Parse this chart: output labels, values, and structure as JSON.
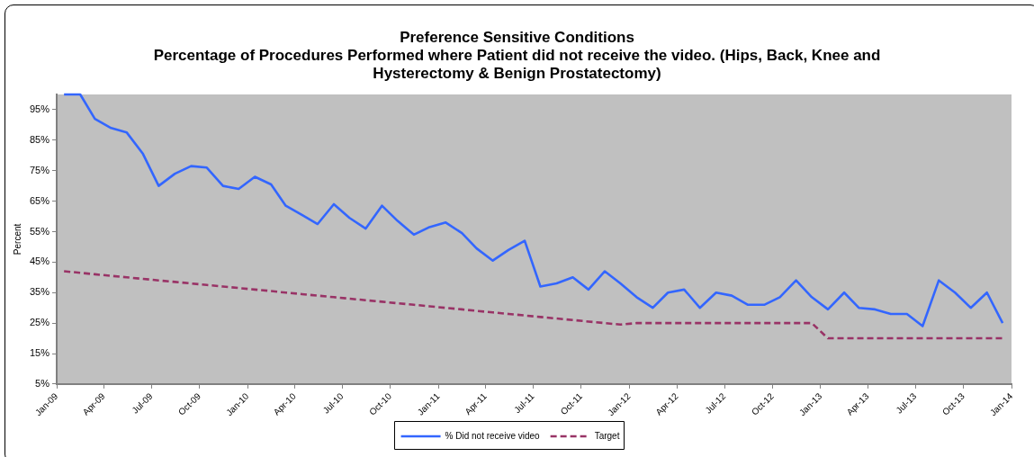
{
  "chart_data": {
    "type": "line",
    "title": "Preference Sensitive Conditions",
    "subtitle": "Percentage of Procedures Performed where Patient did not receive the video. (Hips, Back, Knee and Hysterectomy & Benign Prostatectomy)",
    "ylabel": "Percent",
    "x": [
      "2009-01-15",
      "2009-02-15",
      "2009-03-15",
      "2009-04-15",
      "2009-05-15",
      "2009-06-15",
      "2009-07-15",
      "2009-08-15",
      "2009-09-15",
      "2009-10-15",
      "2009-11-15",
      "2009-12-15",
      "2010-01-15",
      "2010-02-15",
      "2010-03-15",
      "2010-04-15",
      "2010-05-15",
      "2010-06-15",
      "2010-07-15",
      "2010-08-15",
      "2010-09-15",
      "2010-10-15",
      "2010-11-15",
      "2010-12-15",
      "2011-01-15",
      "2011-02-15",
      "2011-03-15",
      "2011-04-15",
      "2011-05-15",
      "2011-06-15",
      "2011-07-15",
      "2011-08-15",
      "2011-09-15",
      "2011-10-15",
      "2011-11-15",
      "2011-12-15",
      "2012-01-15",
      "2012-02-15",
      "2012-03-15",
      "2012-04-15",
      "2012-05-15",
      "2012-06-15",
      "2012-07-15",
      "2012-08-15",
      "2012-09-15",
      "2012-10-15",
      "2012-11-15",
      "2012-12-15",
      "2013-01-15",
      "2013-02-15",
      "2013-03-15",
      "2013-04-15",
      "2013-05-15",
      "2013-06-15",
      "2013-07-15",
      "2013-08-15",
      "2013-09-15",
      "2013-10-15",
      "2013-11-15",
      "2013-12-15"
    ],
    "series": [
      {
        "name": "% Did not receive video",
        "color": "#3366ff",
        "line_style": "solid",
        "values": [
          100,
          100,
          92,
          89,
          87.5,
          80.5,
          70,
          74,
          76.5,
          76,
          70,
          69,
          73,
          70.5,
          63.5,
          60.5,
          57.5,
          64,
          59.5,
          56,
          63.5,
          58.5,
          54,
          56.5,
          58,
          54.5,
          49.5,
          45.5,
          49,
          52,
          37,
          38,
          40,
          36,
          42,
          38,
          33.5,
          30,
          35,
          36,
          30,
          35,
          34,
          31,
          31,
          33.5,
          39,
          33.5,
          29.5,
          35,
          30,
          29.5,
          28,
          28,
          24,
          39,
          35,
          30,
          35,
          25
        ]
      },
      {
        "name": "Target",
        "color": "#993366",
        "line_style": "dashed",
        "values": [
          42,
          41.5,
          41,
          40.5,
          40,
          39.5,
          39,
          38.5,
          38,
          37.5,
          37,
          36.5,
          36,
          35.5,
          35,
          34.5,
          34,
          33.5,
          33,
          32.5,
          32,
          31.5,
          31,
          30.5,
          30,
          29.5,
          29,
          28.5,
          28,
          27.5,
          27,
          26.5,
          26,
          25.5,
          25,
          24.5,
          25,
          25,
          25,
          25,
          25,
          25,
          25,
          25,
          25,
          25,
          25,
          25,
          20,
          20,
          20,
          20,
          20,
          20,
          20,
          20,
          20,
          20,
          20,
          20
        ]
      }
    ],
    "xlim": [
      "2009-01-01",
      "2014-01-01"
    ],
    "xticks": [
      {
        "value": "2009-01-01",
        "label": "Jan-09"
      },
      {
        "value": "2009-04-01",
        "label": "Apr-09"
      },
      {
        "value": "2009-07-01",
        "label": "Jul-09"
      },
      {
        "value": "2009-10-01",
        "label": "Oct-09"
      },
      {
        "value": "2010-01-01",
        "label": "Jan-10"
      },
      {
        "value": "2010-04-01",
        "label": "Apr-10"
      },
      {
        "value": "2010-07-01",
        "label": "Jul-10"
      },
      {
        "value": "2010-10-01",
        "label": "Oct-10"
      },
      {
        "value": "2011-01-01",
        "label": "Jan-11"
      },
      {
        "value": "2011-04-01",
        "label": "Apr-11"
      },
      {
        "value": "2011-07-01",
        "label": "Jul-11"
      },
      {
        "value": "2011-10-01",
        "label": "Oct-11"
      },
      {
        "value": "2012-01-01",
        "label": "Jan-12"
      },
      {
        "value": "2012-04-01",
        "label": "Apr-12"
      },
      {
        "value": "2012-07-01",
        "label": "Jul-12"
      },
      {
        "value": "2012-10-01",
        "label": "Oct-12"
      },
      {
        "value": "2013-01-01",
        "label": "Jan-13"
      },
      {
        "value": "2013-04-01",
        "label": "Apr-13"
      },
      {
        "value": "2013-07-01",
        "label": "Jul-13"
      },
      {
        "value": "2013-10-01",
        "label": "Oct-13"
      },
      {
        "value": "2014-01-01",
        "label": "Jan-14"
      }
    ],
    "ylim": [
      5,
      100
    ],
    "yticks": [
      {
        "value": 5,
        "label": "5%"
      },
      {
        "value": 15,
        "label": "15%"
      },
      {
        "value": 25,
        "label": "25%"
      },
      {
        "value": 35,
        "label": "35%"
      },
      {
        "value": 45,
        "label": "45%"
      },
      {
        "value": 55,
        "label": "55%"
      },
      {
        "value": 65,
        "label": "65%"
      },
      {
        "value": 75,
        "label": "75%"
      },
      {
        "value": 85,
        "label": "85%"
      },
      {
        "value": 95,
        "label": "95%"
      }
    ],
    "grid": false,
    "legend": "bottom",
    "marker": "none"
  }
}
